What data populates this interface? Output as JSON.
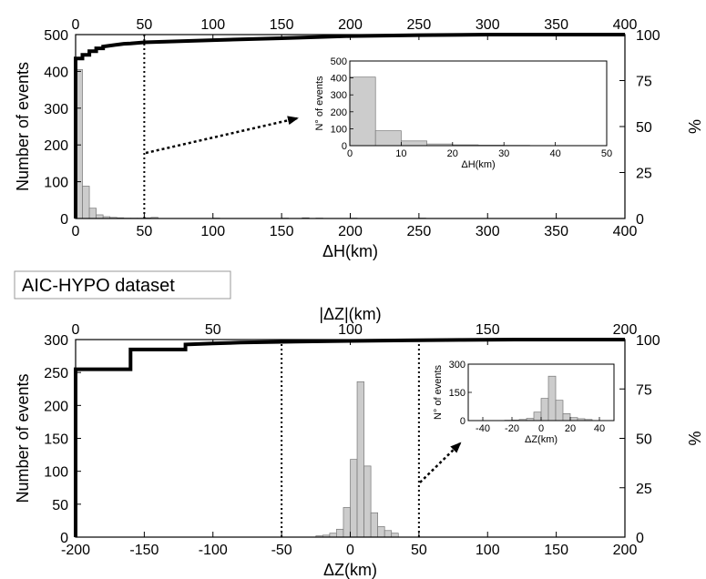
{
  "figure_label": "AIC-HYPO dataset",
  "chart_data": [
    {
      "type": "bar",
      "xlabel": "ΔH(km)",
      "ylabel": "Number of events",
      "y2label": "%",
      "xlim": [
        0,
        400
      ],
      "ylim": [
        0,
        500
      ],
      "y2lim": [
        0,
        100
      ],
      "xticks": [
        0,
        50,
        100,
        150,
        200,
        250,
        300,
        350,
        400
      ],
      "xticks_top": [
        0,
        50,
        100,
        150,
        200,
        250,
        300,
        350,
        400
      ],
      "yticks": [
        0,
        100,
        200,
        300,
        400,
        500
      ],
      "y2ticks": [
        0,
        25,
        50,
        75,
        100
      ],
      "bin_width": 5,
      "histogram": {
        "bins": [
          0,
          5,
          10,
          15,
          20,
          25,
          30,
          35,
          40,
          45,
          50,
          55,
          100,
          150,
          165,
          175,
          200,
          250
        ],
        "counts": [
          405,
          88,
          28,
          10,
          5,
          3,
          2,
          1,
          1,
          1,
          2,
          3,
          1,
          1,
          2,
          1,
          1,
          1
        ]
      },
      "cumulative": {
        "x": [
          0,
          0,
          5,
          5,
          10,
          10,
          15,
          15,
          20,
          20,
          25,
          30,
          35,
          40,
          50,
          100,
          150,
          200,
          250,
          300,
          350,
          400
        ],
        "y": [
          0,
          87,
          87,
          89,
          89,
          91,
          91,
          92.5,
          92.5,
          93.5,
          94,
          94.5,
          95,
          95.2,
          95.8,
          97,
          98,
          99.2,
          99.7,
          100,
          100,
          100
        ]
      },
      "cutoff": 50,
      "inset": {
        "xlabel": "ΔH(km)",
        "ylabel": "N° of events",
        "xlim": [
          0,
          50
        ],
        "ylim": [
          0,
          500
        ],
        "xticks": [
          0,
          10,
          20,
          30,
          40,
          50
        ],
        "yticks": [
          0,
          100,
          200,
          300,
          400,
          500
        ],
        "bins": [
          0,
          5,
          10,
          15,
          20,
          25,
          30,
          35,
          40,
          45
        ],
        "counts": [
          405,
          88,
          28,
          10,
          5,
          3,
          2,
          1,
          1,
          1
        ],
        "bin_width": 5
      }
    },
    {
      "type": "bar",
      "xlabel": "ΔZ(km)",
      "xlabel_top": "|ΔZ|(km)",
      "ylabel": "Number of events",
      "y2label": "%",
      "xlim": [
        -200,
        200
      ],
      "xlim_top": [
        0,
        200
      ],
      "ylim": [
        0,
        300
      ],
      "y2lim": [
        0,
        100
      ],
      "xticks": [
        -200,
        -150,
        -100,
        -50,
        0,
        50,
        100,
        150,
        200
      ],
      "xticks_top": [
        0,
        50,
        100,
        150,
        200
      ],
      "yticks": [
        0,
        50,
        100,
        150,
        200,
        250,
        300
      ],
      "y2ticks": [
        0,
        25,
        50,
        75,
        100
      ],
      "bin_width": 5,
      "histogram": {
        "bins": [
          -25,
          -20,
          -15,
          -10,
          -5,
          0,
          5,
          10,
          15,
          20,
          25,
          30
        ],
        "counts": [
          2,
          3,
          6,
          12,
          45,
          118,
          236,
          108,
          37,
          16,
          10,
          6
        ]
      },
      "cumulative": {
        "x": [
          0,
          0,
          20,
          20,
          40,
          40,
          50,
          60,
          80,
          100,
          120,
          140,
          160,
          180,
          200
        ],
        "y": [
          0,
          85,
          85,
          95,
          95,
          97.5,
          98,
          98.5,
          99,
          99.3,
          99.6,
          99.8,
          100,
          100,
          100
        ]
      },
      "cutoffs": [
        -50,
        50
      ],
      "inset": {
        "xlabel": "ΔZ(km)",
        "ylabel": "N° of events",
        "xlim": [
          -50,
          50
        ],
        "ylim": [
          0,
          300
        ],
        "xticks": [
          -40,
          -20,
          0,
          20,
          40
        ],
        "yticks": [
          0,
          150,
          300
        ],
        "bins": [
          -25,
          -20,
          -15,
          -10,
          -5,
          0,
          5,
          10,
          15,
          20,
          25,
          30
        ],
        "counts": [
          2,
          3,
          6,
          12,
          45,
          118,
          236,
          108,
          37,
          16,
          10,
          6
        ],
        "bin_width": 5
      }
    }
  ]
}
